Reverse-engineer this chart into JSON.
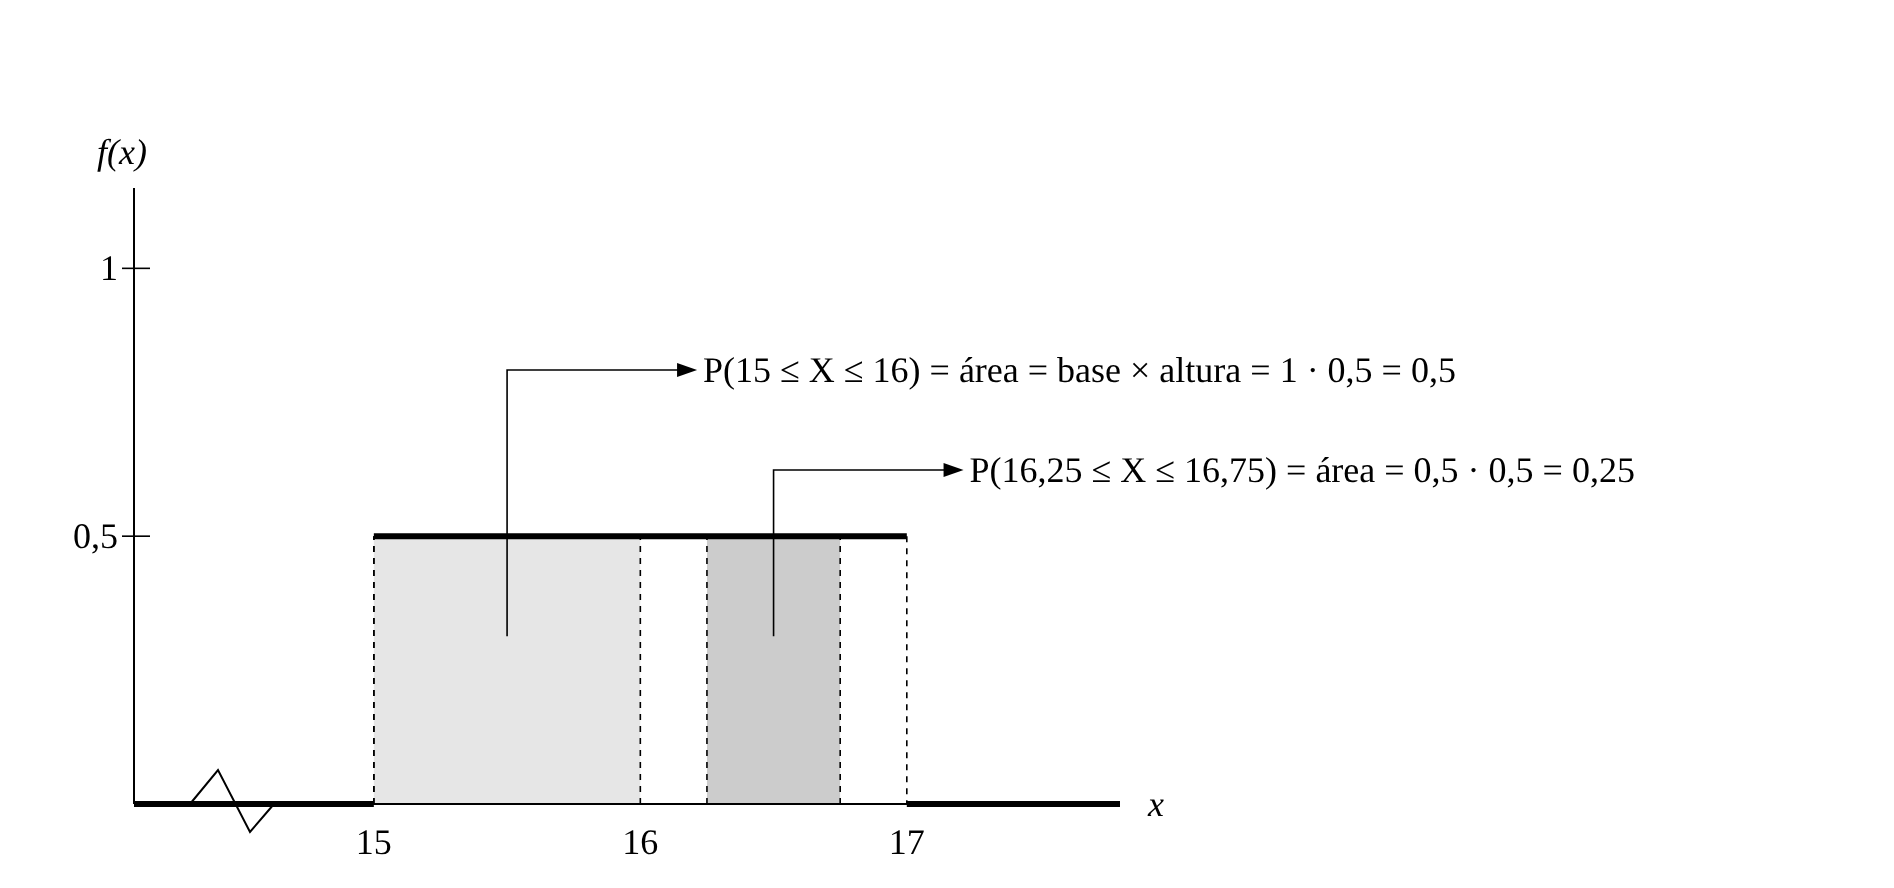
{
  "chart_data": {
    "type": "line",
    "xlabel": "x",
    "ylabel": "f(x)",
    "xlim": [
      14.1,
      17.8
    ],
    "ylim": [
      0,
      1.15
    ],
    "xticks": [
      15,
      16,
      17
    ],
    "yticks": [
      {
        "value": 0.5,
        "label": "0,5"
      },
      1
    ],
    "series": [
      {
        "type": "area",
        "color": "#e6e6e6",
        "x": [
          15,
          16
        ],
        "values": [
          0.5,
          0.5
        ]
      },
      {
        "type": "area",
        "color": "#cccccc",
        "x": [
          16.25,
          16.75
        ],
        "values": [
          0.5,
          0.5
        ]
      },
      {
        "type": "line",
        "color": "#000000",
        "x": [
          14.1,
          15,
          15,
          17,
          17,
          17.8
        ],
        "values": [
          0,
          0,
          0.5,
          0.5,
          0,
          0
        ]
      }
    ],
    "annotations": [
      "P(15 ≤ X ≤ 16) = área = base × altura = 1 · 0,5 = 0,5",
      "P(16,25 ≤ X ≤ 16,75) = área = 0,5 · 0,5 = 0,25"
    ]
  }
}
